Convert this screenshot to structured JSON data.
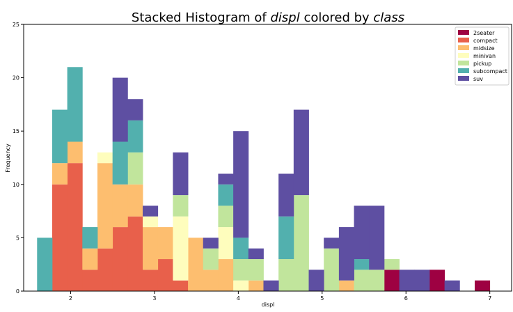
{
  "colors": {
    "2seater": "#9e0142",
    "compact": "#e8604b",
    "midsize": "#fdbe6f",
    "minivan": "#fefdbd",
    "pickup": "#c1e59c",
    "subcompact": "#52b0ae",
    "suv": "#5e4fa2"
  },
  "chart_data": {
    "type": "bar",
    "stacked": true,
    "title_prefix": "Stacked Histogram of ",
    "title_var": "displ",
    "title_mid": " colored by ",
    "title_group": "class",
    "xlabel": "displ",
    "ylabel": "Frequency",
    "xlim": [
      1.44,
      7.26
    ],
    "ylim": [
      0,
      25
    ],
    "xticks": [
      2,
      3,
      4,
      5,
      6,
      7
    ],
    "yticks": [
      0,
      5,
      10,
      15,
      20,
      25
    ],
    "legend_position": "top-right",
    "bin_start": 1.6,
    "bin_width": 0.18,
    "num_bins": 30,
    "series": [
      {
        "name": "2seater",
        "values": [
          0,
          0,
          0,
          0,
          0,
          0,
          0,
          0,
          0,
          0,
          0,
          0,
          0,
          0,
          0,
          0,
          0,
          0,
          0,
          0,
          0,
          0,
          0,
          2,
          0,
          0,
          2,
          0,
          0,
          1
        ]
      },
      {
        "name": "compact",
        "values": [
          0,
          10,
          12,
          2,
          4,
          6,
          7,
          2,
          3,
          1,
          0,
          0,
          0,
          0,
          0,
          0,
          0,
          0,
          0,
          0,
          0,
          0,
          0,
          0,
          0,
          0,
          0,
          0,
          0,
          0
        ]
      },
      {
        "name": "midsize",
        "values": [
          0,
          2,
          2,
          2,
          8,
          4,
          3,
          4,
          3,
          0,
          5,
          2,
          3,
          0,
          1,
          0,
          0,
          0,
          0,
          0,
          1,
          0,
          0,
          0,
          0,
          0,
          0,
          0,
          0,
          0
        ]
      },
      {
        "name": "minivan",
        "values": [
          0,
          0,
          0,
          0,
          1,
          0,
          0,
          1,
          0,
          6,
          0,
          0,
          3,
          1,
          0,
          0,
          0,
          0,
          0,
          0,
          0,
          0,
          0,
          0,
          0,
          0,
          0,
          0,
          0,
          0
        ]
      },
      {
        "name": "pickup",
        "values": [
          0,
          0,
          0,
          0,
          0,
          0,
          3,
          0,
          0,
          2,
          0,
          2,
          2,
          2,
          2,
          0,
          3,
          9,
          0,
          4,
          0,
          2,
          2,
          1,
          0,
          0,
          0,
          0,
          0,
          0
        ]
      },
      {
        "name": "subcompact",
        "values": [
          5,
          5,
          7,
          2,
          0,
          4,
          3,
          0,
          0,
          0,
          0,
          0,
          2,
          2,
          0,
          0,
          4,
          0,
          0,
          0,
          0,
          1,
          0,
          0,
          0,
          0,
          0,
          0,
          0,
          0
        ]
      },
      {
        "name": "suv",
        "values": [
          0,
          0,
          0,
          0,
          0,
          6,
          2,
          1,
          0,
          4,
          0,
          1,
          1,
          10,
          1,
          1,
          4,
          8,
          2,
          1,
          5,
          5,
          6,
          0,
          2,
          2,
          0,
          1,
          0,
          0
        ]
      }
    ]
  }
}
